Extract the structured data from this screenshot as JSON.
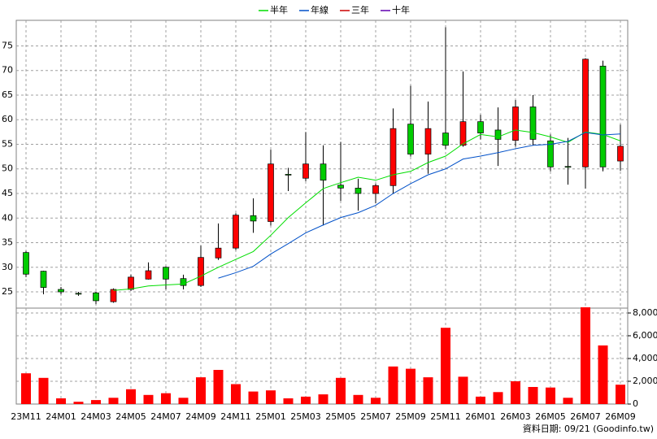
{
  "chart_data": {
    "type": "candlestick",
    "categories": [
      "23M11",
      null,
      "24M01",
      null,
      "24M03",
      null,
      "24M05",
      null,
      "24M07",
      null,
      "24M09",
      null,
      "24M11",
      null,
      "25M01",
      null,
      "25M03",
      null,
      "25M05",
      null,
      "25M07",
      null,
      "25M09",
      null,
      "25M11",
      null,
      "26M01",
      null,
      "26M03",
      null,
      "26M05",
      null,
      "26M07",
      null,
      "26M09"
    ],
    "open": [
      33,
      29.2,
      25.5,
      24.7,
      24.8,
      23,
      25.5,
      27.6,
      30,
      27.7,
      26.3,
      31.9,
      33.9,
      40.5,
      39.3,
      48.9,
      48.1,
      51,
      46.7,
      46.1,
      45,
      46.6,
      59.1,
      53,
      57.3,
      54.8,
      59.6,
      57.9,
      55.8,
      62.6,
      55.7,
      50.5,
      50.4,
      70.9,
      51.6
    ],
    "high": [
      33.3,
      29.3,
      26,
      25,
      25,
      25.7,
      28.5,
      31,
      30.2,
      28.5,
      34.4,
      38.9,
      41,
      44,
      53.9,
      50.2,
      57.5,
      54.8,
      55.5,
      48,
      47,
      62.3,
      66.9,
      63.7,
      78.8,
      69.8,
      61,
      62.5,
      64,
      65,
      57,
      56.3,
      72.5,
      72,
      59
    ],
    "low": [
      28,
      24.5,
      24.5,
      24.2,
      22.5,
      22.8,
      25.2,
      27.5,
      25.5,
      25.5,
      26,
      31.5,
      33.5,
      37,
      38.5,
      45.5,
      47.5,
      38.5,
      43.5,
      41.5,
      43,
      45,
      52.5,
      49,
      54,
      54.5,
      56,
      50.6,
      54.5,
      54.8,
      49.5,
      46.8,
      46,
      49.5,
      49.6
    ],
    "close": [
      28.6,
      25.9,
      25,
      24.6,
      23.2,
      25.5,
      28,
      29.3,
      27.6,
      26.3,
      32,
      33.9,
      40.6,
      39.4,
      51,
      48.8,
      51,
      47.7,
      46.1,
      45,
      46.6,
      58.2,
      53,
      58.2,
      54.8,
      59.6,
      57.3,
      56,
      62.6,
      56,
      50.4,
      50.4,
      72.3,
      50.4,
      54.6
    ],
    "up_color": "#ff0000",
    "down_color": "#00cc00",
    "ylim": [
      21.7,
      80.2
    ],
    "yticks": [
      25,
      30,
      35,
      40,
      45,
      50,
      55,
      60,
      65,
      70,
      75
    ],
    "grid": true,
    "series": [
      {
        "name": "半年",
        "color": "#00dd00",
        "values": [
          null,
          null,
          null,
          null,
          null,
          25.3,
          25.6,
          26.2,
          26.4,
          26.6,
          28.2,
          30,
          31.6,
          33.2,
          36.5,
          40.1,
          43.1,
          46,
          47.2,
          48.3,
          47.7,
          48.8,
          49.5,
          51.3,
          52.6,
          55.1,
          57,
          56.5,
          57.9,
          57.4,
          56.5,
          55.4,
          57.5,
          57,
          55.7
        ]
      },
      {
        "name": "年線",
        "color": "#0050c8",
        "values": [
          null,
          null,
          null,
          null,
          null,
          null,
          null,
          null,
          null,
          null,
          null,
          27.8,
          28.9,
          30.2,
          32.7,
          34.8,
          37,
          38.6,
          40.1,
          41.1,
          42.6,
          45,
          47,
          48.8,
          50,
          52,
          52.6,
          53.3,
          54.1,
          54.8,
          55,
          55.6,
          57.4,
          56.9,
          57.1
        ]
      },
      {
        "name": "三年",
        "color": "#cc0000",
        "values": [
          null,
          null,
          null,
          null,
          null,
          null,
          null,
          null,
          null,
          null,
          null,
          null,
          null,
          null,
          null,
          null,
          null,
          null,
          null,
          null,
          null,
          null,
          null,
          null,
          null,
          null,
          null,
          null,
          null,
          null,
          null,
          null,
          null,
          null,
          null
        ]
      },
      {
        "name": "十年",
        "color": "#6000b0",
        "values": [
          null,
          null,
          null,
          null,
          null,
          null,
          null,
          null,
          null,
          null,
          null,
          null,
          null,
          null,
          null,
          null,
          null,
          null,
          null,
          null,
          null,
          null,
          null,
          null,
          null,
          null,
          null,
          null,
          null,
          null,
          null,
          null,
          null,
          null,
          null
        ]
      }
    ],
    "volume": {
      "color": "#ff0000",
      "values": [
        2700,
        2300,
        500,
        200,
        350,
        550,
        1300,
        800,
        950,
        550,
        2350,
        3000,
        1750,
        1100,
        1200,
        500,
        650,
        850,
        2300,
        800,
        550,
        3300,
        3100,
        2350,
        6700,
        2400,
        650,
        1050,
        2000,
        1500,
        1450,
        550,
        8500,
        5150,
        1700
      ],
      "ylim": [
        0,
        8500
      ],
      "yticks": [
        0,
        {
          "value": 2000,
          "label": "2,000"
        },
        {
          "value": 4000,
          "label": "4,000"
        },
        {
          "value": 6000,
          "label": "6,000"
        },
        {
          "value": 8000,
          "label": "8,000"
        }
      ]
    },
    "footer": "資料日期: 09/21  (Goodinfo.tw)"
  }
}
